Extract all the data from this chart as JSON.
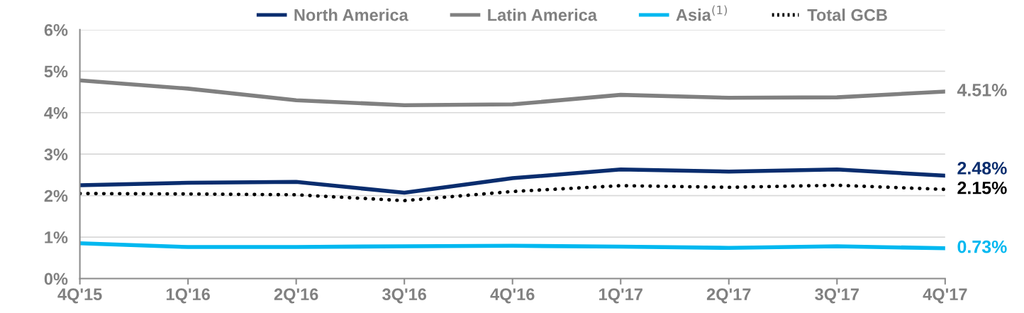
{
  "chart_data": {
    "type": "line",
    "categories": [
      "4Q'15",
      "1Q'16",
      "2Q'16",
      "3Q'16",
      "4Q'16",
      "1Q'17",
      "2Q'17",
      "3Q'17",
      "4Q'17"
    ],
    "series": [
      {
        "name": "North America",
        "color": "#0a2d6e",
        "line_style": "solid",
        "values": [
          2.25,
          2.31,
          2.33,
          2.07,
          2.42,
          2.63,
          2.58,
          2.63,
          2.48
        ],
        "value_labels": [
          null,
          null,
          null,
          null,
          null,
          null,
          null,
          null,
          "2.48%"
        ]
      },
      {
        "name": "Latin America",
        "color": "#808080",
        "line_style": "solid",
        "values": [
          4.78,
          4.58,
          4.3,
          4.18,
          4.2,
          4.43,
          4.36,
          4.37,
          4.51
        ],
        "value_labels": [
          null,
          null,
          null,
          null,
          null,
          null,
          null,
          null,
          "4.51%"
        ]
      },
      {
        "name": "Asia$^{(1)}$",
        "color": "#00b8f0",
        "line_style": "solid",
        "values": [
          0.85,
          0.76,
          0.76,
          0.78,
          0.79,
          0.77,
          0.74,
          0.78,
          0.73
        ],
        "value_labels": [
          null,
          null,
          null,
          null,
          null,
          null,
          null,
          null,
          "0.73%"
        ]
      },
      {
        "name": "Total GCB",
        "color": "#000000",
        "line_style": "dotted",
        "values": [
          2.05,
          2.04,
          2.02,
          1.88,
          2.1,
          2.24,
          2.2,
          2.25,
          2.15
        ],
        "value_labels": [
          null,
          null,
          null,
          null,
          null,
          null,
          null,
          null,
          "2.15%"
        ]
      }
    ],
    "ylim": [
      0,
      6
    ],
    "yticks": [
      {
        "value": 0,
        "label": "0%"
      },
      {
        "value": 1,
        "label": "1%"
      },
      {
        "value": 2,
        "label": "2%"
      },
      {
        "value": 3,
        "label": "3%"
      },
      {
        "value": 4,
        "label": "4%"
      },
      {
        "value": 5,
        "label": "5%"
      },
      {
        "value": 6,
        "label": "6%"
      }
    ],
    "grid": "y",
    "legend": "top",
    "marker": "none"
  }
}
